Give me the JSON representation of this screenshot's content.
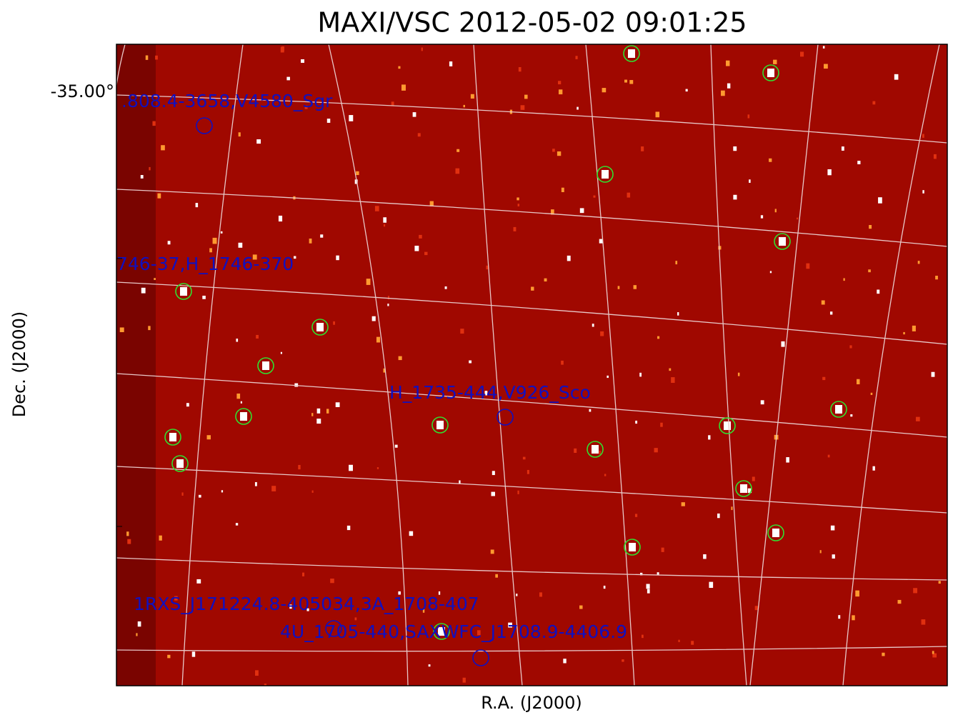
{
  "title": "MAXI/VSC 2012-05-02 09:01:25",
  "x_label": "R.A. (J2000)",
  "y_label": "Dec. (J2000)",
  "y_tick_label": "-35.00°",
  "sources": [
    {
      "label": ".808.4-3658,V4580_Sgr"
    },
    {
      "label": "746-37,H_1746-370"
    },
    {
      "label": "H_1735-444,V926_Sco"
    },
    {
      "label": "1RXS_J171224.8-405034,3A_1708-407"
    },
    {
      "label": "4U_1705-440,SAXWFC_J1708.9-4406.9"
    }
  ]
}
